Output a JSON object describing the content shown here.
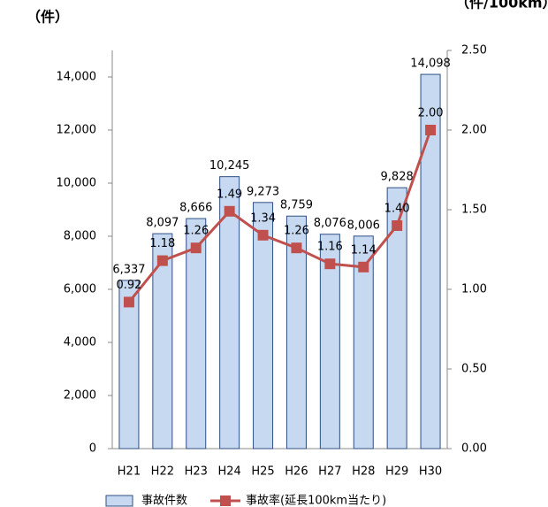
{
  "chart_data": {
    "type": "bar_line",
    "y_label": "（件）",
    "y2_label": "（件/100km）",
    "categories": [
      "H21",
      "H22",
      "H23",
      "H24",
      "H25",
      "H26",
      "H27",
      "H28",
      "H29",
      "H30"
    ],
    "series": [
      {
        "name": "事故件数",
        "color": "#c6d9f1",
        "edge": "#2f4f82",
        "type": "bar",
        "axis": "y",
        "values": [
          6337,
          8097,
          8666,
          10245,
          9273,
          8759,
          8076,
          8006,
          9828,
          14098
        ],
        "value_labels": [
          "6,337",
          "8,097",
          "8,666",
          "10,245",
          "9,273",
          "8,759",
          "8,076",
          "8,006",
          "9,828",
          "14,098"
        ]
      },
      {
        "name": "事故率(延長100km当たり)",
        "color": "#c0504d",
        "type": "line",
        "axis": "y2",
        "values": [
          0.92,
          1.18,
          1.26,
          1.49,
          1.34,
          1.26,
          1.16,
          1.14,
          1.4,
          2.0
        ],
        "value_labels": [
          "0.92",
          "1.18",
          "1.26",
          "1.49",
          "1.34",
          "1.26",
          "1.16",
          "1.14",
          "1.40",
          "2.00"
        ]
      }
    ],
    "ylim": [
      0,
      15000
    ],
    "yticks": [
      0,
      {
        "value": 2000,
        "label": "2,000"
      },
      {
        "value": 4000,
        "label": "4,000"
      },
      {
        "value": 6000,
        "label": "6,000"
      },
      {
        "value": 8000,
        "label": "8,000"
      },
      {
        "value": 10000,
        "label": "10,000"
      },
      {
        "value": 12000,
        "label": "12,000"
      },
      {
        "value": 14000,
        "label": "14,000"
      }
    ],
    "y2lim": [
      0,
      2.5
    ],
    "y2ticks": [
      {
        "value": 0,
        "label": "0.00"
      },
      {
        "value": 0.5,
        "label": "0.50"
      },
      {
        "value": 1,
        "label": "1.00"
      },
      {
        "value": 1.5,
        "label": "1.50"
      },
      {
        "value": 2,
        "label": "2.00"
      },
      {
        "value": 2.5,
        "label": "2.50"
      }
    ],
    "legend": "bottom"
  }
}
